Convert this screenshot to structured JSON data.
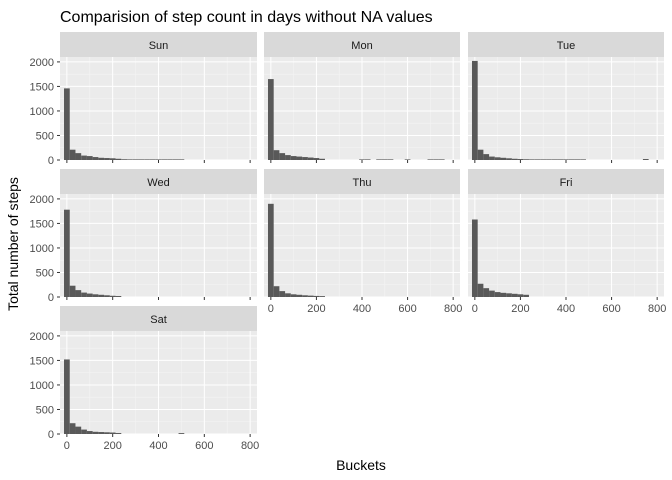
{
  "chart_data": {
    "type": "bar",
    "subtype": "faceted-histogram",
    "title": "Comparision of step count in days without NA values",
    "xlabel": "Buckets",
    "ylabel": "Total number of steps",
    "xlim": [
      -30,
      830
    ],
    "ylim": [
      0,
      2100
    ],
    "x_ticks": [
      0,
      200,
      400,
      600,
      800
    ],
    "y_ticks": [
      0,
      500,
      1000,
      1500,
      2000
    ],
    "bin_width": 25,
    "facets": [
      {
        "label": "Sun",
        "bins": [
          {
            "x": 0,
            "count": 1460
          },
          {
            "x": 25,
            "count": 210
          },
          {
            "x": 50,
            "count": 140
          },
          {
            "x": 75,
            "count": 90
          },
          {
            "x": 100,
            "count": 80
          },
          {
            "x": 125,
            "count": 60
          },
          {
            "x": 150,
            "count": 45
          },
          {
            "x": 175,
            "count": 40
          },
          {
            "x": 200,
            "count": 35
          },
          {
            "x": 225,
            "count": 25
          },
          {
            "x": 250,
            "count": 15
          },
          {
            "x": 275,
            "count": 10
          },
          {
            "x": 300,
            "count": 8
          },
          {
            "x": 325,
            "count": 6
          },
          {
            "x": 350,
            "count": 5
          },
          {
            "x": 375,
            "count": 4
          },
          {
            "x": 400,
            "count": 4
          },
          {
            "x": 425,
            "count": 3
          },
          {
            "x": 450,
            "count": 3
          },
          {
            "x": 475,
            "count": 3
          },
          {
            "x": 500,
            "count": 2
          }
        ]
      },
      {
        "label": "Mon",
        "bins": [
          {
            "x": 0,
            "count": 1650
          },
          {
            "x": 25,
            "count": 200
          },
          {
            "x": 50,
            "count": 140
          },
          {
            "x": 75,
            "count": 100
          },
          {
            "x": 100,
            "count": 80
          },
          {
            "x": 125,
            "count": 70
          },
          {
            "x": 150,
            "count": 60
          },
          {
            "x": 175,
            "count": 50
          },
          {
            "x": 200,
            "count": 40
          },
          {
            "x": 225,
            "count": 25
          },
          {
            "x": 400,
            "count": 10
          },
          {
            "x": 425,
            "count": 8
          },
          {
            "x": 475,
            "count": 10
          },
          {
            "x": 500,
            "count": 10
          },
          {
            "x": 525,
            "count": 8
          },
          {
            "x": 600,
            "count": 12
          },
          {
            "x": 700,
            "count": 8
          },
          {
            "x": 725,
            "count": 8
          },
          {
            "x": 750,
            "count": 8
          }
        ]
      },
      {
        "label": "Tue",
        "bins": [
          {
            "x": 0,
            "count": 2020
          },
          {
            "x": 25,
            "count": 210
          },
          {
            "x": 50,
            "count": 120
          },
          {
            "x": 75,
            "count": 70
          },
          {
            "x": 100,
            "count": 55
          },
          {
            "x": 125,
            "count": 45
          },
          {
            "x": 150,
            "count": 35
          },
          {
            "x": 175,
            "count": 25
          },
          {
            "x": 200,
            "count": 20
          },
          {
            "x": 225,
            "count": 15
          },
          {
            "x": 250,
            "count": 10
          },
          {
            "x": 275,
            "count": 8
          },
          {
            "x": 300,
            "count": 6
          },
          {
            "x": 325,
            "count": 5
          },
          {
            "x": 350,
            "count": 5
          },
          {
            "x": 375,
            "count": 4
          },
          {
            "x": 400,
            "count": 4
          },
          {
            "x": 425,
            "count": 3
          },
          {
            "x": 450,
            "count": 3
          },
          {
            "x": 475,
            "count": 3
          },
          {
            "x": 750,
            "count": 20
          }
        ]
      },
      {
        "label": "Wed",
        "bins": [
          {
            "x": 0,
            "count": 1780
          },
          {
            "x": 25,
            "count": 230
          },
          {
            "x": 50,
            "count": 140
          },
          {
            "x": 75,
            "count": 90
          },
          {
            "x": 100,
            "count": 70
          },
          {
            "x": 125,
            "count": 55
          },
          {
            "x": 150,
            "count": 45
          },
          {
            "x": 175,
            "count": 35
          },
          {
            "x": 200,
            "count": 25
          },
          {
            "x": 225,
            "count": 20
          }
        ]
      },
      {
        "label": "Thu",
        "bins": [
          {
            "x": 0,
            "count": 1900
          },
          {
            "x": 25,
            "count": 220
          },
          {
            "x": 50,
            "count": 120
          },
          {
            "x": 75,
            "count": 75
          },
          {
            "x": 100,
            "count": 55
          },
          {
            "x": 125,
            "count": 45
          },
          {
            "x": 150,
            "count": 35
          },
          {
            "x": 175,
            "count": 28
          },
          {
            "x": 200,
            "count": 22
          },
          {
            "x": 225,
            "count": 18
          }
        ]
      },
      {
        "label": "Fri",
        "bins": [
          {
            "x": 0,
            "count": 1580
          },
          {
            "x": 25,
            "count": 270
          },
          {
            "x": 50,
            "count": 180
          },
          {
            "x": 75,
            "count": 130
          },
          {
            "x": 100,
            "count": 100
          },
          {
            "x": 125,
            "count": 85
          },
          {
            "x": 150,
            "count": 75
          },
          {
            "x": 175,
            "count": 65
          },
          {
            "x": 200,
            "count": 55
          },
          {
            "x": 225,
            "count": 45
          }
        ]
      },
      {
        "label": "Sat",
        "bins": [
          {
            "x": 0,
            "count": 1520
          },
          {
            "x": 25,
            "count": 220
          },
          {
            "x": 50,
            "count": 150
          },
          {
            "x": 75,
            "count": 90
          },
          {
            "x": 100,
            "count": 60
          },
          {
            "x": 125,
            "count": 45
          },
          {
            "x": 150,
            "count": 40
          },
          {
            "x": 175,
            "count": 35
          },
          {
            "x": 200,
            "count": 30
          },
          {
            "x": 225,
            "count": 20
          },
          {
            "x": 500,
            "count": 18
          }
        ]
      }
    ]
  }
}
